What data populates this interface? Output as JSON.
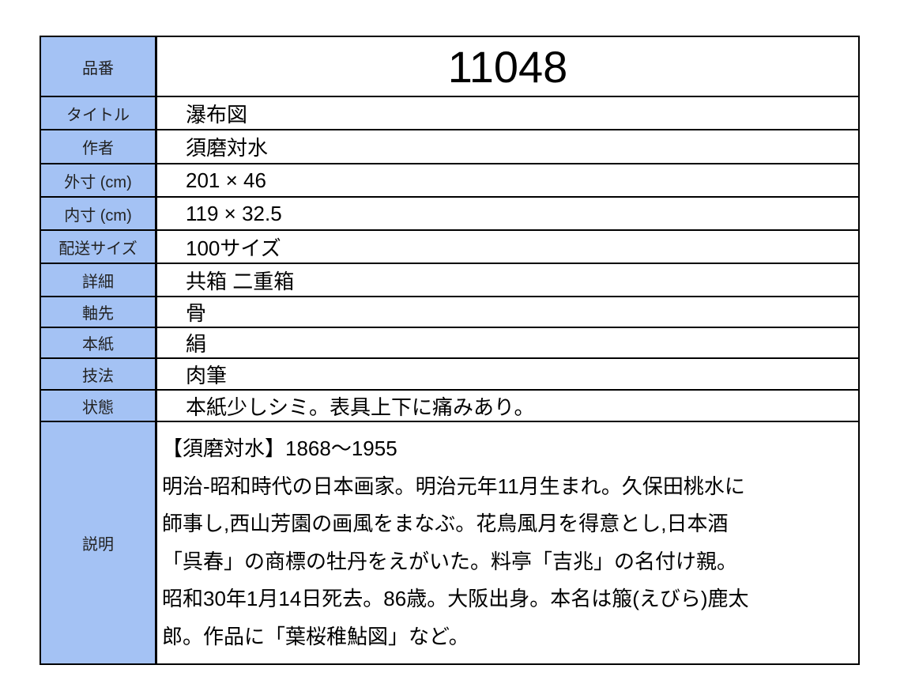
{
  "rows": [
    {
      "label": "品番",
      "value": "11048"
    },
    {
      "label": "タイトル",
      "value": "瀑布図"
    },
    {
      "label": "作者",
      "value": "須磨対水"
    },
    {
      "label": "外寸 (cm)",
      "value": "201 × 46"
    },
    {
      "label": "内寸 (cm)",
      "value": "119 × 32.5"
    },
    {
      "label": "配送サイズ",
      "value": "100サイズ"
    },
    {
      "label": "詳細",
      "value": "共箱 二重箱"
    },
    {
      "label": "軸先",
      "value": "骨"
    },
    {
      "label": "本紙",
      "value": "絹"
    },
    {
      "label": "技法",
      "value": "肉筆"
    },
    {
      "label": "状態",
      "value": "本紙少しシミ。表具上下に痛みあり。"
    }
  ],
  "description": {
    "label": "説明",
    "lines": [
      "【須磨対水】1868〜1955",
      "明治-昭和時代の日本画家。明治元年11月生まれ。久保田桃水に",
      "師事し,西山芳園の画風をまなぶ。花鳥風月を得意とし,日本酒",
      "「呉春」の商標の牡丹をえがいた。料亭「吉兆」の名付け親。",
      "昭和30年1月14日死去。86歳。大阪出身。本名は箙(えびら)鹿太",
      "郎。作品に「葉桜稚鮎図」など。"
    ]
  },
  "colors": {
    "label_bg": "#a4c2f4",
    "border": "#000000"
  }
}
